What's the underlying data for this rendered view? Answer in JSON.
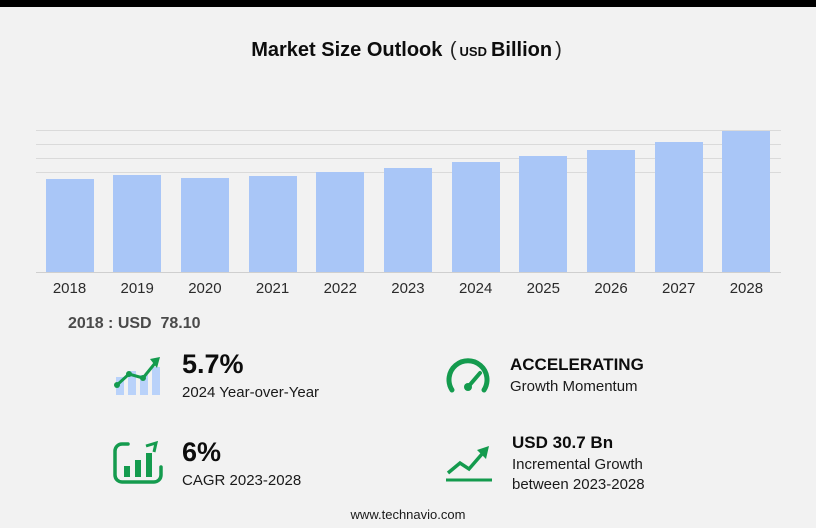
{
  "header": {
    "title": "Market Size Outlook",
    "unit_prefix": "(",
    "unit_currency": "USD",
    "unit_word": "Billion",
    "unit_suffix": ")"
  },
  "chart_data": {
    "type": "bar",
    "title": "Market Size Outlook (USD Billion)",
    "categories": [
      "2018",
      "2019",
      "2020",
      "2021",
      "2022",
      "2023",
      "2024",
      "2025",
      "2026",
      "2027",
      "2028"
    ],
    "values": [
      78.1,
      81.0,
      78.6,
      80.6,
      83.6,
      86.9,
      91.9,
      96.8,
      102.2,
      108.6,
      117.6
    ],
    "xlabel": "",
    "ylabel": "USD Billion",
    "ylim": [
      0,
      122
    ],
    "grid": true,
    "legend": "none",
    "bar_color": "#a9c6f7",
    "labeled_point": {
      "year": "2018",
      "value": 78.1
    }
  },
  "annotation": {
    "base_year_note": "2018 : USD  78.10"
  },
  "stats": [
    {
      "icon": "yoy-bar-growth-icon",
      "value": "5.7%",
      "label": "2024 Year-over-Year"
    },
    {
      "icon": "speedometer-icon",
      "value": "ACCELERATING",
      "label": "Growth Momentum"
    },
    {
      "icon": "cagr-chart-icon",
      "value": "6%",
      "label": "CAGR 2023-2028"
    },
    {
      "icon": "incremental-growth-icon",
      "value": "USD 30.7 Bn",
      "label": "Incremental Growth between 2023-2028"
    }
  ],
  "footer": {
    "site": "www.technavio.com"
  },
  "colors": {
    "accent_green": "#149b4e",
    "bar_blue": "#a9c6f7",
    "background": "#f2f2f2"
  }
}
